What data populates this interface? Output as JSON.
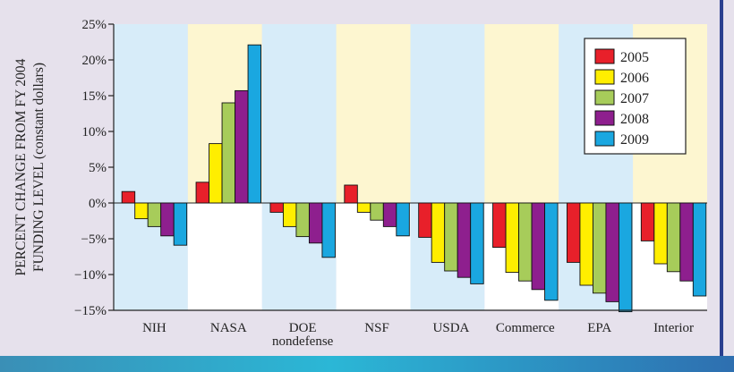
{
  "chart_data": {
    "type": "bar",
    "ylabel_lines": [
      "PERCENT CHANGE FROM FY 2004",
      "FUNDING LEVEL (constant dollars)"
    ],
    "xlabel": "",
    "ylim": [
      -15,
      25
    ],
    "yticks": [
      25,
      20,
      15,
      10,
      5,
      0,
      -5,
      -10,
      -15
    ],
    "ytick_labels": [
      "25%",
      "20%",
      "15%",
      "10%",
      "5%",
      "0%",
      "−5%",
      "−10%",
      "−15%"
    ],
    "categories": [
      {
        "label": "NIH",
        "sublabel": ""
      },
      {
        "label": "NASA",
        "sublabel": ""
      },
      {
        "label": "DOE",
        "sublabel": "nondefense"
      },
      {
        "label": "NSF",
        "sublabel": ""
      },
      {
        "label": "USDA",
        "sublabel": ""
      },
      {
        "label": "Commerce",
        "sublabel": ""
      },
      {
        "label": "EPA",
        "sublabel": ""
      },
      {
        "label": "Interior",
        "sublabel": ""
      }
    ],
    "series": [
      {
        "name": "2005",
        "color": "#e8202a",
        "values": [
          1.6,
          2.9,
          -1.3,
          2.5,
          -4.8,
          -6.2,
          -8.3,
          -5.3
        ]
      },
      {
        "name": "2006",
        "color": "#ffee00",
        "values": [
          -2.2,
          8.3,
          -3.3,
          -1.3,
          -8.3,
          -9.7,
          -11.5,
          -8.5
        ]
      },
      {
        "name": "2007",
        "color": "#a7cc5a",
        "values": [
          -3.3,
          14.0,
          -4.7,
          -2.4,
          -9.5,
          -10.9,
          -12.6,
          -9.6
        ]
      },
      {
        "name": "2008",
        "color": "#8e1f8e",
        "values": [
          -4.6,
          15.7,
          -5.6,
          -3.3,
          -10.4,
          -12.1,
          -13.8,
          -10.9
        ]
      },
      {
        "name": "2009",
        "color": "#1aa7e0",
        "values": [
          -5.9,
          22.1,
          -7.6,
          -4.6,
          -11.3,
          -13.6,
          -15.2,
          -13.0
        ]
      }
    ],
    "band_colors": [
      "#d7ecf9",
      "#fdf6d0"
    ],
    "legend_position": "top-right"
  }
}
